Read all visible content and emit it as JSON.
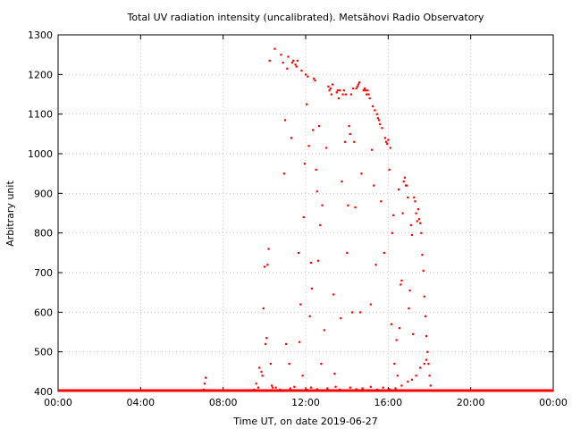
{
  "chart_data": {
    "type": "scatter",
    "title": "Total UV radiation intensity (uncalibrated). Metsähovi Radio Observatory",
    "xlabel": "Time UT, on date 2019-06-27",
    "ylabel": "Arbitrary unit",
    "xlim": [
      0,
      24
    ],
    "ylim": [
      400,
      1300
    ],
    "grid": true,
    "color": "#ff0000",
    "x_ticks": [
      {
        "value": 0,
        "label": "00:00"
      },
      {
        "value": 4,
        "label": "04:00"
      },
      {
        "value": 8,
        "label": "08:00"
      },
      {
        "value": 12,
        "label": "12:00"
      },
      {
        "value": 16,
        "label": "16:00"
      },
      {
        "value": 20,
        "label": "20:00"
      },
      {
        "value": 24,
        "label": "00:00"
      }
    ],
    "y_ticks": [
      {
        "value": 400,
        "label": "400"
      },
      {
        "value": 500,
        "label": "500"
      },
      {
        "value": 600,
        "label": "600"
      },
      {
        "value": 700,
        "label": "700"
      },
      {
        "value": 800,
        "label": "800"
      },
      {
        "value": 900,
        "label": "900"
      },
      {
        "value": 1000,
        "label": "1000"
      },
      {
        "value": 1100,
        "label": "1100"
      },
      {
        "value": 1200,
        "label": "1200"
      },
      {
        "value": 1300,
        "label": "1300"
      }
    ],
    "baseline": {
      "value": 400,
      "x_range": [
        0,
        24
      ]
    },
    "points": [
      [
        7.05,
        405
      ],
      [
        7.1,
        420
      ],
      [
        7.15,
        435
      ],
      [
        9.5,
        405
      ],
      [
        9.6,
        420
      ],
      [
        9.7,
        410
      ],
      [
        9.85,
        450
      ],
      [
        9.9,
        440
      ],
      [
        9.95,
        610
      ],
      [
        10.0,
        715
      ],
      [
        10.05,
        520
      ],
      [
        10.1,
        535
      ],
      [
        10.15,
        720
      ],
      [
        10.2,
        760
      ],
      [
        10.25,
        1235
      ],
      [
        10.3,
        470
      ],
      [
        10.35,
        415
      ],
      [
        10.5,
        1265
      ],
      [
        10.55,
        410
      ],
      [
        10.8,
        1250
      ],
      [
        10.9,
        1230
      ],
      [
        10.95,
        950
      ],
      [
        11.0,
        1085
      ],
      [
        11.05,
        520
      ],
      [
        11.1,
        1215
      ],
      [
        11.15,
        1245
      ],
      [
        11.2,
        470
      ],
      [
        11.3,
        1040
      ],
      [
        11.35,
        1230
      ],
      [
        11.4,
        1235
      ],
      [
        11.5,
        1225
      ],
      [
        11.55,
        1220
      ],
      [
        11.6,
        1235
      ],
      [
        11.65,
        750
      ],
      [
        11.7,
        525
      ],
      [
        11.75,
        620
      ],
      [
        11.8,
        1210
      ],
      [
        11.85,
        440
      ],
      [
        11.9,
        840
      ],
      [
        11.95,
        975
      ],
      [
        12.0,
        1200
      ],
      [
        12.05,
        1125
      ],
      [
        12.1,
        1195
      ],
      [
        12.15,
        1020
      ],
      [
        12.2,
        590
      ],
      [
        12.25,
        725
      ],
      [
        12.3,
        660
      ],
      [
        12.35,
        1060
      ],
      [
        12.4,
        1190
      ],
      [
        12.45,
        1185
      ],
      [
        12.5,
        960
      ],
      [
        12.55,
        905
      ],
      [
        12.6,
        730
      ],
      [
        12.65,
        1070
      ],
      [
        12.7,
        820
      ],
      [
        12.75,
        470
      ],
      [
        12.8,
        870
      ],
      [
        12.9,
        555
      ],
      [
        13.0,
        1015
      ],
      [
        13.1,
        1170
      ],
      [
        13.15,
        1160
      ],
      [
        13.2,
        1165
      ],
      [
        13.25,
        1150
      ],
      [
        13.3,
        1175
      ],
      [
        13.35,
        645
      ],
      [
        13.4,
        445
      ],
      [
        13.5,
        1155
      ],
      [
        13.55,
        1160
      ],
      [
        13.6,
        1140
      ],
      [
        13.65,
        1160
      ],
      [
        13.7,
        585
      ],
      [
        13.75,
        930
      ],
      [
        13.8,
        1150
      ],
      [
        13.85,
        1160
      ],
      [
        13.9,
        1030
      ],
      [
        13.95,
        1150
      ],
      [
        14.0,
        750
      ],
      [
        14.05,
        870
      ],
      [
        14.1,
        1070
      ],
      [
        14.15,
        1050
      ],
      [
        14.2,
        1150
      ],
      [
        14.25,
        600
      ],
      [
        14.3,
        1165
      ],
      [
        14.35,
        1030
      ],
      [
        14.4,
        865
      ],
      [
        14.45,
        1165
      ],
      [
        14.5,
        1170
      ],
      [
        14.55,
        1175
      ],
      [
        14.6,
        1180
      ],
      [
        14.65,
        600
      ],
      [
        14.7,
        950
      ],
      [
        14.8,
        1160
      ],
      [
        14.85,
        1165
      ],
      [
        14.9,
        1160
      ],
      [
        14.95,
        1150
      ],
      [
        15.0,
        1160
      ],
      [
        15.05,
        1150
      ],
      [
        15.1,
        1140
      ],
      [
        15.15,
        620
      ],
      [
        15.2,
        1010
      ],
      [
        15.25,
        1120
      ],
      [
        15.3,
        920
      ],
      [
        15.35,
        1110
      ],
      [
        15.4,
        720
      ],
      [
        15.45,
        1100
      ],
      [
        15.5,
        1090
      ],
      [
        15.55,
        1085
      ],
      [
        15.6,
        1075
      ],
      [
        15.65,
        880
      ],
      [
        15.7,
        1065
      ],
      [
        15.8,
        750
      ],
      [
        15.85,
        1040
      ],
      [
        15.9,
        1030
      ],
      [
        15.95,
        1025
      ],
      [
        16.0,
        1035
      ],
      [
        16.05,
        960
      ],
      [
        16.1,
        1015
      ],
      [
        16.15,
        570
      ],
      [
        16.2,
        800
      ],
      [
        16.25,
        845
      ],
      [
        16.3,
        470
      ],
      [
        16.4,
        530
      ],
      [
        16.45,
        440
      ],
      [
        16.5,
        910
      ],
      [
        16.55,
        560
      ],
      [
        16.6,
        670
      ],
      [
        16.65,
        680
      ],
      [
        16.7,
        850
      ],
      [
        16.75,
        930
      ],
      [
        16.8,
        940
      ],
      [
        16.85,
        920
      ],
      [
        16.9,
        920
      ],
      [
        16.95,
        890
      ],
      [
        17.0,
        610
      ],
      [
        17.05,
        655
      ],
      [
        17.1,
        820
      ],
      [
        17.15,
        795
      ],
      [
        17.2,
        545
      ],
      [
        17.25,
        890
      ],
      [
        17.3,
        880
      ],
      [
        17.35,
        850
      ],
      [
        17.4,
        830
      ],
      [
        17.45,
        860
      ],
      [
        17.5,
        835
      ],
      [
        17.55,
        825
      ],
      [
        17.6,
        800
      ],
      [
        17.65,
        745
      ],
      [
        17.7,
        705
      ],
      [
        17.75,
        640
      ],
      [
        17.8,
        590
      ],
      [
        17.85,
        540
      ],
      [
        17.9,
        500
      ],
      [
        17.95,
        470
      ],
      [
        18.0,
        440
      ],
      [
        18.05,
        415
      ],
      [
        9.75,
        460
      ],
      [
        10.4,
        410
      ],
      [
        10.75,
        405
      ],
      [
        11.25,
        408
      ],
      [
        11.45,
        412
      ],
      [
        12.05,
        405
      ],
      [
        12.25,
        410
      ],
      [
        12.55,
        406
      ],
      [
        13.05,
        408
      ],
      [
        13.45,
        412
      ],
      [
        13.65,
        405
      ],
      [
        14.15,
        410
      ],
      [
        14.45,
        406
      ],
      [
        14.75,
        408
      ],
      [
        15.15,
        412
      ],
      [
        15.45,
        405
      ],
      [
        15.75,
        410
      ],
      [
        16.05,
        406
      ],
      [
        16.35,
        408
      ],
      [
        16.65,
        415
      ],
      [
        16.95,
        425
      ],
      [
        17.15,
        430
      ],
      [
        17.35,
        440
      ],
      [
        17.55,
        460
      ],
      [
        17.75,
        470
      ],
      [
        17.85,
        480
      ]
    ]
  }
}
